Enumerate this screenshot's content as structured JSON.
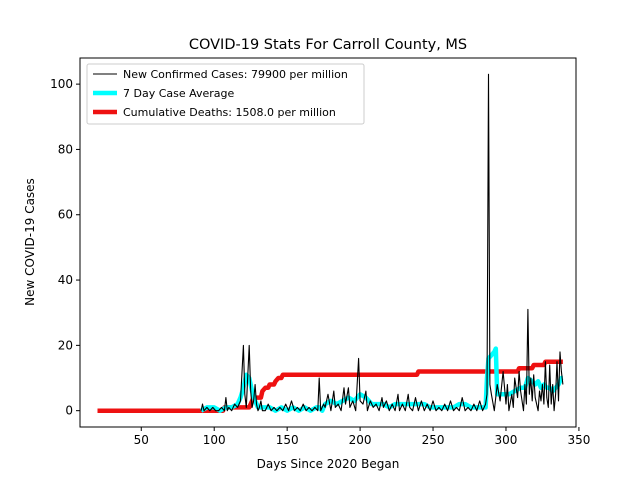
{
  "chart_data": {
    "type": "line",
    "title": "COVID-19 Stats For Carroll County, MS",
    "xlabel": "Days Since 2020 Began",
    "ylabel": "New COVID-19 Cases",
    "xlim": [
      8,
      348
    ],
    "ylim": [
      -5,
      108
    ],
    "xticks": [
      50,
      100,
      150,
      200,
      250,
      300,
      350
    ],
    "yticks": [
      0,
      20,
      40,
      60,
      80,
      100
    ],
    "grid": false,
    "legend_position": "top-left",
    "series": [
      {
        "name": "New Confirmed Cases: 79900 per million",
        "color": "#000000",
        "style": "thin",
        "points": [
          [
            91,
            0
          ],
          [
            92,
            2
          ],
          [
            93,
            0
          ],
          [
            95,
            1
          ],
          [
            97,
            0
          ],
          [
            99,
            1
          ],
          [
            101,
            0
          ],
          [
            103,
            0
          ],
          [
            105,
            1
          ],
          [
            107,
            0
          ],
          [
            108,
            4
          ],
          [
            109,
            0
          ],
          [
            110,
            1
          ],
          [
            112,
            0
          ],
          [
            114,
            2
          ],
          [
            116,
            1
          ],
          [
            118,
            3
          ],
          [
            120,
            20
          ],
          [
            121,
            5
          ],
          [
            122,
            1
          ],
          [
            124,
            20
          ],
          [
            125,
            6
          ],
          [
            126,
            1
          ],
          [
            127,
            3
          ],
          [
            128,
            8
          ],
          [
            129,
            2
          ],
          [
            130,
            0
          ],
          [
            131,
            1
          ],
          [
            132,
            3
          ],
          [
            133,
            0
          ],
          [
            135,
            0
          ],
          [
            137,
            2
          ],
          [
            139,
            0
          ],
          [
            141,
            1
          ],
          [
            143,
            0
          ],
          [
            145,
            1
          ],
          [
            147,
            0
          ],
          [
            149,
            2
          ],
          [
            151,
            0
          ],
          [
            153,
            3
          ],
          [
            155,
            0
          ],
          [
            157,
            1
          ],
          [
            159,
            0
          ],
          [
            161,
            2
          ],
          [
            163,
            0
          ],
          [
            165,
            1
          ],
          [
            167,
            0
          ],
          [
            169,
            1
          ],
          [
            171,
            0
          ],
          [
            172,
            10
          ],
          [
            173,
            0
          ],
          [
            175,
            2
          ],
          [
            176,
            1
          ],
          [
            178,
            5
          ],
          [
            180,
            0
          ],
          [
            182,
            6
          ],
          [
            183,
            1
          ],
          [
            185,
            2
          ],
          [
            187,
            0
          ],
          [
            189,
            7
          ],
          [
            190,
            2
          ],
          [
            192,
            7
          ],
          [
            193,
            1
          ],
          [
            195,
            3
          ],
          [
            197,
            0
          ],
          [
            199,
            16
          ],
          [
            200,
            3
          ],
          [
            202,
            2
          ],
          [
            204,
            6
          ],
          [
            205,
            0
          ],
          [
            207,
            3
          ],
          [
            209,
            1
          ],
          [
            211,
            2
          ],
          [
            213,
            0
          ],
          [
            215,
            4
          ],
          [
            216,
            1
          ],
          [
            218,
            3
          ],
          [
            220,
            0
          ],
          [
            222,
            2
          ],
          [
            224,
            0
          ],
          [
            226,
            5
          ],
          [
            227,
            0
          ],
          [
            229,
            2
          ],
          [
            231,
            0
          ],
          [
            233,
            5
          ],
          [
            234,
            1
          ],
          [
            236,
            0
          ],
          [
            238,
            4
          ],
          [
            240,
            0
          ],
          [
            242,
            3
          ],
          [
            244,
            0
          ],
          [
            246,
            2
          ],
          [
            248,
            0
          ],
          [
            250,
            3
          ],
          [
            252,
            0
          ],
          [
            254,
            1
          ],
          [
            256,
            0
          ],
          [
            258,
            2
          ],
          [
            260,
            0
          ],
          [
            262,
            3
          ],
          [
            264,
            0
          ],
          [
            266,
            1
          ],
          [
            268,
            0
          ],
          [
            270,
            4
          ],
          [
            272,
            0
          ],
          [
            274,
            1
          ],
          [
            276,
            0
          ],
          [
            278,
            2
          ],
          [
            280,
            0
          ],
          [
            282,
            3
          ],
          [
            284,
            0
          ],
          [
            286,
            2
          ],
          [
            287,
            5
          ],
          [
            288,
            103
          ],
          [
            289,
            8
          ],
          [
            290,
            5
          ],
          [
            292,
            0
          ],
          [
            294,
            8
          ],
          [
            296,
            3
          ],
          [
            298,
            12
          ],
          [
            300,
            2
          ],
          [
            301,
            8
          ],
          [
            302,
            0
          ],
          [
            304,
            5
          ],
          [
            305,
            1
          ],
          [
            306,
            10
          ],
          [
            308,
            4
          ],
          [
            309,
            12
          ],
          [
            310,
            6
          ],
          [
            312,
            0
          ],
          [
            313,
            8
          ],
          [
            314,
            2
          ],
          [
            315,
            31
          ],
          [
            316,
            5
          ],
          [
            317,
            10
          ],
          [
            318,
            3
          ],
          [
            319,
            11
          ],
          [
            320,
            4
          ],
          [
            322,
            0
          ],
          [
            323,
            6
          ],
          [
            324,
            3
          ],
          [
            325,
            8
          ],
          [
            326,
            2
          ],
          [
            327,
            15
          ],
          [
            328,
            4
          ],
          [
            329,
            1
          ],
          [
            330,
            14
          ],
          [
            331,
            2
          ],
          [
            332,
            8
          ],
          [
            333,
            0
          ],
          [
            334,
            5
          ],
          [
            335,
            15
          ],
          [
            336,
            3
          ],
          [
            337,
            18
          ],
          [
            338,
            12
          ],
          [
            339,
            8
          ]
        ]
      },
      {
        "name": "7 Day Case Average",
        "color": "#00ffff",
        "style": "thick",
        "points": [
          [
            91,
            0
          ],
          [
            95,
            1
          ],
          [
            100,
            1
          ],
          [
            104,
            0
          ],
          [
            108,
            1
          ],
          [
            112,
            1
          ],
          [
            116,
            2
          ],
          [
            118,
            4
          ],
          [
            120,
            7
          ],
          [
            122,
            11
          ],
          [
            124,
            10
          ],
          [
            126,
            6
          ],
          [
            128,
            3
          ],
          [
            130,
            1
          ],
          [
            134,
            1
          ],
          [
            138,
            1
          ],
          [
            142,
            0
          ],
          [
            146,
            1
          ],
          [
            150,
            0
          ],
          [
            154,
            1
          ],
          [
            158,
            0
          ],
          [
            162,
            1
          ],
          [
            166,
            0
          ],
          [
            170,
            1
          ],
          [
            172,
            1
          ],
          [
            174,
            0
          ],
          [
            176,
            2
          ],
          [
            180,
            3
          ],
          [
            184,
            2
          ],
          [
            188,
            3
          ],
          [
            192,
            4
          ],
          [
            196,
            3
          ],
          [
            200,
            5
          ],
          [
            204,
            4
          ],
          [
            208,
            2
          ],
          [
            212,
            2
          ],
          [
            216,
            2
          ],
          [
            220,
            1
          ],
          [
            224,
            2
          ],
          [
            228,
            2
          ],
          [
            232,
            2
          ],
          [
            236,
            2
          ],
          [
            240,
            2
          ],
          [
            244,
            2
          ],
          [
            248,
            1
          ],
          [
            252,
            1
          ],
          [
            256,
            1
          ],
          [
            260,
            1
          ],
          [
            264,
            1
          ],
          [
            268,
            2
          ],
          [
            272,
            2
          ],
          [
            276,
            1
          ],
          [
            280,
            1
          ],
          [
            284,
            1
          ],
          [
            286,
            1
          ],
          [
            287,
            10
          ],
          [
            288,
            16
          ],
          [
            290,
            17
          ],
          [
            292,
            18
          ],
          [
            293,
            19
          ],
          [
            294,
            5
          ],
          [
            298,
            5
          ],
          [
            302,
            5
          ],
          [
            306,
            6
          ],
          [
            310,
            7
          ],
          [
            313,
            7
          ],
          [
            315,
            10
          ],
          [
            318,
            9
          ],
          [
            320,
            8
          ],
          [
            322,
            9
          ],
          [
            324,
            7
          ],
          [
            326,
            8
          ],
          [
            328,
            7
          ],
          [
            330,
            7
          ],
          [
            332,
            6
          ],
          [
            334,
            7
          ],
          [
            336,
            8
          ],
          [
            338,
            10
          ],
          [
            339,
            10
          ]
        ]
      },
      {
        "name": "Cumulative Deaths: 1508.0 per million",
        "color": "#ee1111",
        "style": "thick",
        "points": [
          [
            20,
            0
          ],
          [
            60,
            0
          ],
          [
            100,
            0
          ],
          [
            106,
            0
          ],
          [
            107,
            1
          ],
          [
            110,
            1
          ],
          [
            115,
            1
          ],
          [
            120,
            1
          ],
          [
            124,
            1
          ],
          [
            125,
            2
          ],
          [
            126,
            3
          ],
          [
            127,
            4
          ],
          [
            132,
            4
          ],
          [
            133,
            6
          ],
          [
            135,
            7
          ],
          [
            137,
            7
          ],
          [
            138,
            8
          ],
          [
            141,
            8
          ],
          [
            142,
            9
          ],
          [
            144,
            10
          ],
          [
            146,
            10
          ],
          [
            147,
            11
          ],
          [
            160,
            11
          ],
          [
            180,
            11
          ],
          [
            200,
            11
          ],
          [
            220,
            11
          ],
          [
            239,
            11
          ],
          [
            240,
            12
          ],
          [
            260,
            12
          ],
          [
            280,
            12
          ],
          [
            300,
            12
          ],
          [
            308,
            12
          ],
          [
            309,
            13
          ],
          [
            318,
            13
          ],
          [
            319,
            14
          ],
          [
            326,
            14
          ],
          [
            327,
            15
          ],
          [
            339,
            15
          ]
        ]
      }
    ]
  }
}
